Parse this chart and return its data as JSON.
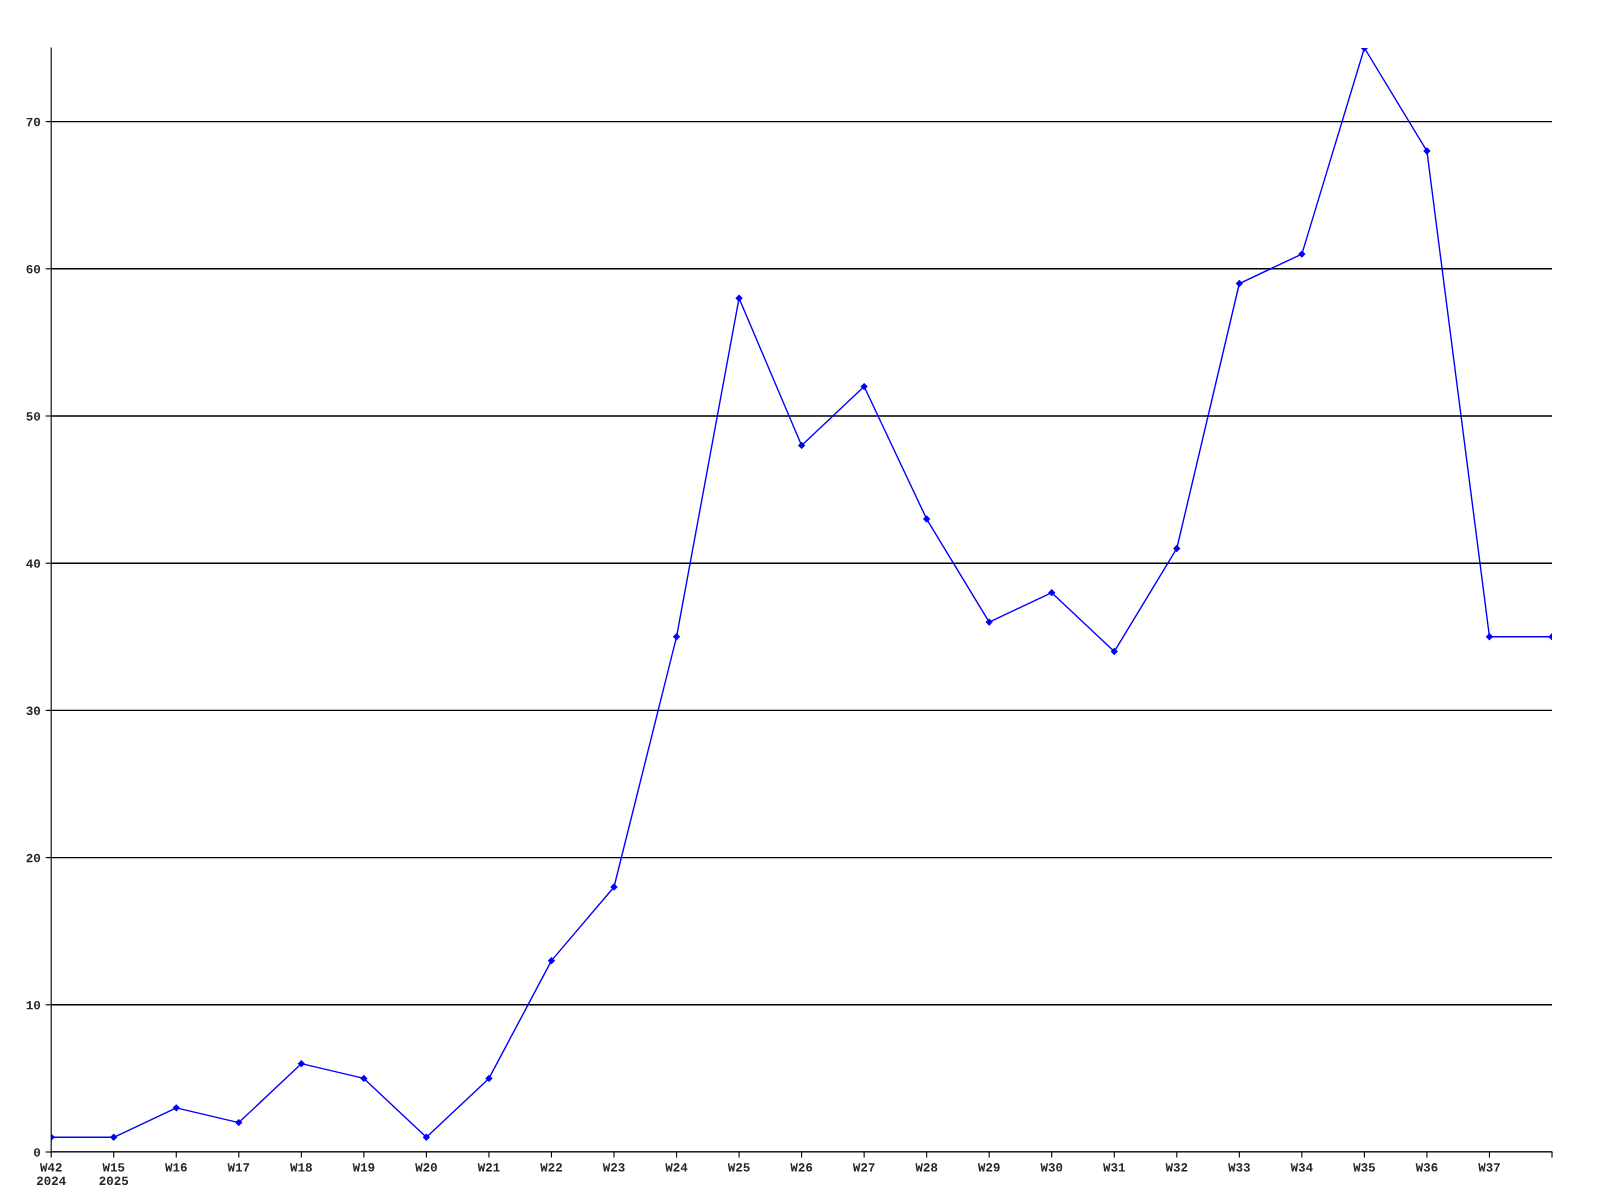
{
  "chart_data": {
    "type": "line",
    "categories": [
      "W42\n2024",
      "W15\n2025",
      "W16",
      "W17",
      "W18",
      "W19",
      "W20",
      "W21",
      "W22",
      "W23",
      "W24",
      "W25",
      "W26",
      "W27",
      "W28",
      "W29",
      "W30",
      "W31",
      "W32",
      "W33",
      "W34",
      "W35",
      "W36",
      "W37",
      null
    ],
    "series": [
      {
        "color": "#0000ff",
        "values": [
          1,
          1,
          3,
          2,
          6,
          5,
          1,
          5,
          13,
          18,
          35,
          58,
          48,
          52,
          43,
          36,
          38,
          34,
          41,
          59,
          61,
          75,
          68,
          35,
          35
        ]
      }
    ],
    "ylim": [
      0,
      75
    ],
    "yticks": [
      0,
      10,
      20,
      30,
      40,
      50,
      60,
      70
    ],
    "grid": "y",
    "marker": "diamond",
    "line_style": "solid"
  }
}
